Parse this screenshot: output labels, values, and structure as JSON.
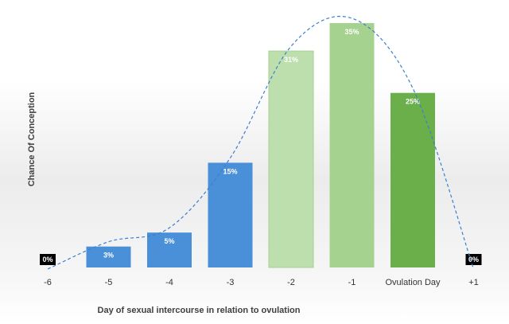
{
  "chart_data": {
    "type": "bar",
    "title": "",
    "xlabel": "Day of sexual intercourse in relation to ovulation",
    "ylabel": "Chance Of Conception",
    "categories": [
      "-6",
      "-5",
      "-4",
      "-3",
      "-2",
      "-1",
      "Ovulation Day",
      "+1"
    ],
    "values": [
      0,
      3,
      5,
      15,
      31,
      35,
      25,
      0
    ],
    "data_labels": [
      "0%",
      "3%",
      "5%",
      "15%",
      "31%",
      "35%",
      "25%",
      "0%"
    ],
    "ylim": [
      0,
      35
    ],
    "grid": false,
    "legend": "none",
    "trend_line": "dashed-curve",
    "colors": {
      "bar_blue": "#4a90d9",
      "bar_light_green": "#bcdfad",
      "bar_mid_green": "#a5d28e",
      "bar_green": "#6aaf4a",
      "trend": "#3b7fd0",
      "zero_box": "#000000"
    }
  }
}
